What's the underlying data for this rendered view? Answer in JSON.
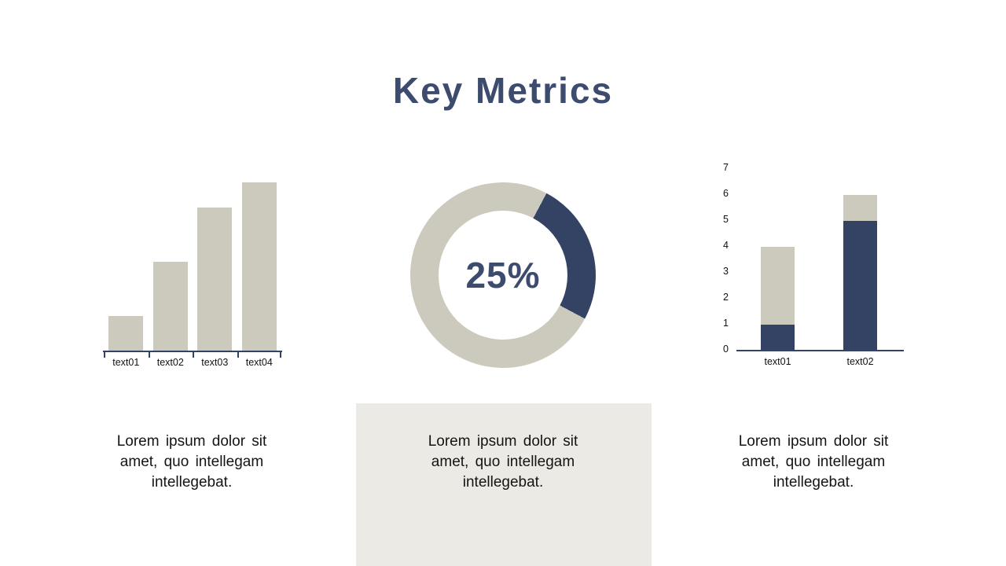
{
  "title": "Key Metrics",
  "colors": {
    "navy": "#344264",
    "accent_text": "#3C4B6E",
    "beige": "#CCC9BD",
    "panel_bg": "#EBEAE4",
    "body_text": "#141414"
  },
  "chart_data": [
    {
      "id": "ascending-bar-chart",
      "type": "bar",
      "categories": [
        "text01",
        "text02",
        "text03",
        "text04"
      ],
      "values": [
        21,
        53,
        85,
        100
      ],
      "value_unit": "percent-of-max",
      "bar_color": "beige",
      "axis": "x-axis-only-with-ticks",
      "grid": false
    },
    {
      "id": "donut-progress",
      "type": "pie",
      "label": "25%",
      "value": 25,
      "remainder": 75,
      "segment_color": "navy",
      "track_color": "beige",
      "start_angle_deg": 28
    },
    {
      "id": "stacked-bar-chart",
      "type": "bar",
      "stacked": true,
      "categories": [
        "text01",
        "text02"
      ],
      "series": [
        {
          "name": "bottom-segment",
          "color": "navy",
          "values": [
            1,
            5
          ]
        },
        {
          "name": "top-segment",
          "color": "beige",
          "values": [
            3,
            1
          ]
        }
      ],
      "ylim": [
        0,
        7
      ],
      "yticks": [
        0,
        1,
        2,
        3,
        4,
        5,
        6,
        7
      ],
      "grid": false
    }
  ],
  "captions": [
    {
      "text": "Lorem ipsum dolor sit amet, quo intellegam intellegebat."
    },
    {
      "text": "Lorem ipsum dolor sit amet, quo intellegam intellegebat."
    },
    {
      "text": "Lorem ipsum dolor sit amet, quo intellegam intellegebat."
    }
  ]
}
